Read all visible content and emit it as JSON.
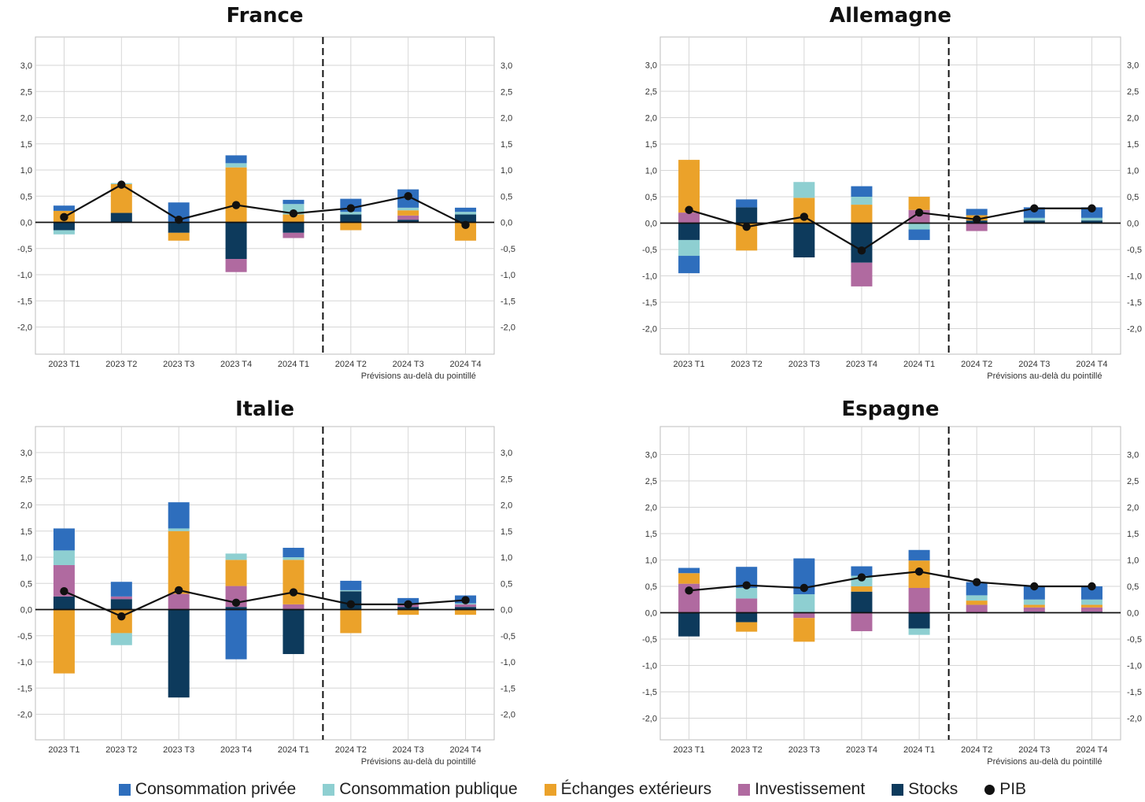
{
  "colors": {
    "consommation_privee": "#2e6ebd",
    "consommation_publique": "#8ecfd1",
    "echanges_exterieurs": "#eba22a",
    "investissement": "#b06aa0",
    "stocks": "#0d3a5c",
    "pib": "#111111"
  },
  "legend": [
    {
      "key": "consommation_privee",
      "label": "Consommation privée",
      "kind": "swatch"
    },
    {
      "key": "consommation_publique",
      "label": "Consommation publique",
      "kind": "swatch"
    },
    {
      "key": "echanges_exterieurs",
      "label": "Échanges extérieurs",
      "kind": "swatch"
    },
    {
      "key": "investissement",
      "label": "Investissement",
      "kind": "swatch"
    },
    {
      "key": "stocks",
      "label": "Stocks",
      "kind": "swatch"
    },
    {
      "key": "pib",
      "label": "PIB",
      "kind": "dot"
    }
  ],
  "chart_data": [
    {
      "type": "bar",
      "title": "France",
      "categories": [
        "2023 T1",
        "2023 T2",
        "2023 T3",
        "2023 T4",
        "2024 T1",
        "2024 T2",
        "2024 T3",
        "2024 T4"
      ],
      "note": "Prévisions au-delà du pointillé",
      "forecast_after": "2024 T1",
      "ylim": [
        -2.5,
        3.5
      ],
      "yticks": [
        "3,0",
        "2,5",
        "2,0",
        "1,5",
        "1,0",
        "0,5",
        "0,0",
        "-0,5",
        "-1,0",
        "-1,5",
        "-2,0"
      ],
      "grid": true,
      "series": [
        {
          "key": "stocks",
          "values": [
            -0.15,
            0.18,
            -0.2,
            -0.7,
            -0.2,
            0.15,
            0.05,
            0.15
          ]
        },
        {
          "key": "investissement",
          "values": [
            0,
            0,
            0,
            -0.25,
            -0.1,
            0,
            0.08,
            0
          ]
        },
        {
          "key": "echanges_exterieurs",
          "values": [
            0.22,
            0.55,
            -0.15,
            1.05,
            0.15,
            -0.15,
            0.1,
            -0.35
          ]
        },
        {
          "key": "consommation_publique",
          "values": [
            -0.08,
            0.02,
            0,
            0.08,
            0.2,
            0.05,
            0.05,
            0.05
          ]
        },
        {
          "key": "consommation_privee",
          "values": [
            0.1,
            0,
            0.38,
            0.15,
            0.08,
            0.25,
            0.35,
            0.08
          ]
        }
      ],
      "pib": [
        0.1,
        0.72,
        0.05,
        0.33,
        0.17,
        0.27,
        0.5,
        -0.05
      ]
    },
    {
      "type": "bar",
      "title": "Allemagne",
      "categories": [
        "2023 T1",
        "2023 T2",
        "2023 T3",
        "2023 T4",
        "2024 T1",
        "2024 T2",
        "2024 T3",
        "2024 T4"
      ],
      "note": "Prévisions au-delà du pointillé",
      "forecast_after": "2024 T1",
      "ylim": [
        -2.5,
        3.5
      ],
      "yticks": [
        "3,0",
        "2,5",
        "2,0",
        "1,5",
        "1,0",
        "0,5",
        "0,0",
        "-0,5",
        "-1,0",
        "-1,5",
        "-2,0"
      ],
      "grid": true,
      "series": [
        {
          "key": "stocks",
          "values": [
            -0.32,
            0.3,
            -0.65,
            -0.75,
            0,
            0.05,
            0.05,
            0.05
          ]
        },
        {
          "key": "investissement",
          "values": [
            0.2,
            0,
            0,
            -0.45,
            0.25,
            -0.15,
            0,
            0
          ]
        },
        {
          "key": "echanges_exterieurs",
          "values": [
            1.0,
            -0.52,
            0.48,
            0.35,
            0.25,
            0.1,
            0,
            0
          ]
        },
        {
          "key": "consommation_publique",
          "values": [
            -0.3,
            0,
            0.3,
            0.15,
            -0.12,
            0,
            0.05,
            0.05
          ]
        },
        {
          "key": "consommation_privee",
          "values": [
            -0.33,
            0.15,
            0,
            0.2,
            -0.2,
            0.12,
            0.2,
            0.2
          ]
        }
      ],
      "pib": [
        0.25,
        -0.07,
        0.12,
        -0.52,
        0.2,
        0.07,
        0.28,
        0.28
      ]
    },
    {
      "type": "bar",
      "title": "Italie",
      "categories": [
        "2023 T1",
        "2023 T2",
        "2023 T3",
        "2023 T4",
        "2024 T1",
        "2024 T2",
        "2024 T3",
        "2024 T4"
      ],
      "note": "Prévisions au-delà du pointillé",
      "forecast_after": "2024 T1",
      "ylim": [
        -2.5,
        3.5
      ],
      "yticks": [
        "3,0",
        "2,5",
        "2,0",
        "1,5",
        "1,0",
        "0,5",
        "0,0",
        "-0,5",
        "-1,0",
        "-1,5",
        "-2,0"
      ],
      "grid": true,
      "series": [
        {
          "key": "stocks",
          "values": [
            0.25,
            0.2,
            -1.68,
            0.05,
            -0.85,
            0.35,
            0.05,
            0.05
          ]
        },
        {
          "key": "investissement",
          "values": [
            0.6,
            0.05,
            0.3,
            0.4,
            0.1,
            0,
            0.05,
            0.05
          ]
        },
        {
          "key": "echanges_exterieurs",
          "values": [
            -1.22,
            -0.45,
            1.2,
            0.5,
            0.85,
            -0.45,
            -0.1,
            -0.1
          ]
        },
        {
          "key": "consommation_publique",
          "values": [
            0.28,
            -0.23,
            0.05,
            0.12,
            0.05,
            0.02,
            0.02,
            0.02
          ]
        },
        {
          "key": "consommation_privee",
          "values": [
            0.42,
            0.28,
            0.5,
            -0.95,
            0.18,
            0.18,
            0.1,
            0.15
          ]
        }
      ],
      "pib": [
        0.35,
        -0.13,
        0.37,
        0.13,
        0.33,
        0.1,
        0.1,
        0.18
      ]
    },
    {
      "type": "bar",
      "title": "Espagne",
      "categories": [
        "2023 T1",
        "2023 T2",
        "2023 T3",
        "2023 T4",
        "2024 T1",
        "2024 T2",
        "2024 T3",
        "2024 T4"
      ],
      "note": "Prévisions au-delà du pointillé",
      "forecast_after": "2024 T1",
      "ylim": [
        -2.5,
        3.5
      ],
      "yticks": [
        "3,0",
        "2,5",
        "2,0",
        "1,5",
        "1,0",
        "0,5",
        "0,0",
        "-0,5",
        "-1,0",
        "-1,5",
        "-2,0"
      ],
      "grid": true,
      "series": [
        {
          "key": "stocks",
          "values": [
            -0.45,
            -0.18,
            0,
            0.4,
            -0.3,
            0,
            0.02,
            0.02
          ]
        },
        {
          "key": "investissement",
          "values": [
            0.55,
            0.27,
            -0.1,
            -0.35,
            0.47,
            0.15,
            0.08,
            0.08
          ]
        },
        {
          "key": "echanges_exterieurs",
          "values": [
            0.2,
            -0.18,
            -0.45,
            0.1,
            0.52,
            0.08,
            0.05,
            0.05
          ]
        },
        {
          "key": "consommation_publique",
          "values": [
            0,
            0.2,
            0.35,
            0.2,
            -0.12,
            0.1,
            0.1,
            0.1
          ]
        },
        {
          "key": "consommation_privee",
          "values": [
            0.1,
            0.4,
            0.68,
            0.18,
            0.2,
            0.25,
            0.25,
            0.25
          ]
        }
      ],
      "pib": [
        0.42,
        0.52,
        0.47,
        0.67,
        0.78,
        0.58,
        0.5,
        0.5
      ]
    }
  ]
}
